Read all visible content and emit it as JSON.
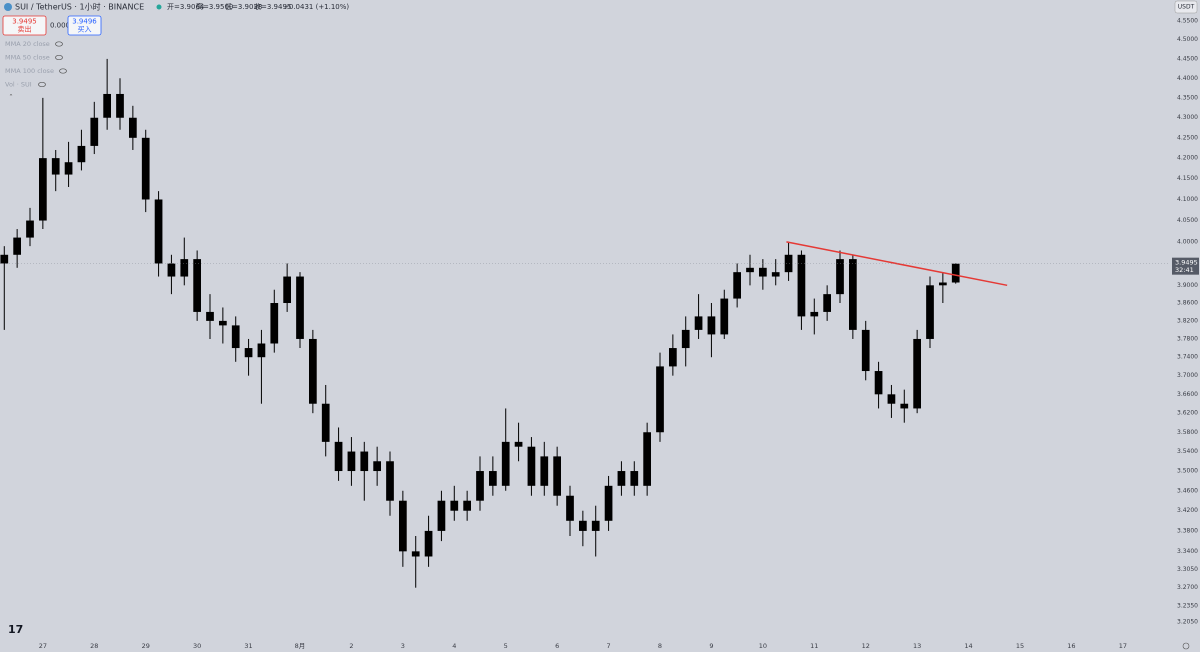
{
  "header": {
    "symbol": "SUI / TetherUS · 1小时 · BINANCE",
    "open": "开=3.9064",
    "high": "高=3.9500",
    "low": "低=3.9038",
    "close": "收=3.9495",
    "change": "+0.0431 (+1.10%)",
    "sell_price": "3.9495",
    "sell_label": "卖出",
    "spread": "0.0001",
    "buy_price": "3.9496",
    "buy_label": "买入",
    "indicators": [
      "MMA 20 close",
      "MMA 50 close",
      "MMA 100 close",
      "Vol · SUI"
    ],
    "currency": "USDT",
    "countdown": "32:41"
  },
  "chart_data": {
    "type": "candlestick",
    "color": "#000000",
    "log_scale": true,
    "grid": false,
    "x": [
      -18,
      -12,
      -6,
      0,
      6,
      12,
      18,
      24,
      30,
      36,
      42,
      48,
      54,
      60,
      66,
      72,
      78,
      84,
      90,
      96,
      102,
      108,
      114,
      120,
      126,
      132,
      138,
      144,
      150,
      156,
      162,
      168,
      174,
      180,
      186,
      192,
      198,
      204,
      210,
      216,
      222,
      228,
      234,
      240,
      246,
      252,
      258,
      264,
      270,
      276,
      282,
      288,
      294,
      300,
      306,
      312,
      318,
      324,
      330,
      336,
      342,
      348,
      354,
      360,
      366,
      372,
      378,
      384,
      390,
      396,
      402,
      408,
      414,
      420,
      426
    ],
    "open": [
      3.95,
      3.97,
      4.01,
      4.05,
      4.2,
      4.16,
      4.19,
      4.23,
      4.3,
      4.36,
      4.3,
      4.25,
      4.1,
      3.95,
      3.92,
      3.96,
      3.84,
      3.82,
      3.81,
      3.76,
      3.74,
      3.77,
      3.86,
      3.92,
      3.78,
      3.64,
      3.56,
      3.5,
      3.54,
      3.5,
      3.52,
      3.44,
      3.34,
      3.33,
      3.38,
      3.44,
      3.42,
      3.44,
      3.5,
      3.47,
      3.56,
      3.55,
      3.47,
      3.53,
      3.45,
      3.4,
      3.38,
      3.4,
      3.47,
      3.5,
      3.47,
      3.58,
      3.72,
      3.76,
      3.8,
      3.83,
      3.79,
      3.87,
      3.93,
      3.94,
      3.92,
      3.93,
      3.97,
      3.83,
      3.84,
      3.88,
      3.96,
      3.8,
      3.71,
      3.66,
      3.64,
      3.63,
      3.78,
      3.9,
      3.9064
    ],
    "high": [
      3.99,
      4.03,
      4.08,
      4.35,
      4.22,
      4.24,
      4.27,
      4.34,
      4.45,
      4.4,
      4.33,
      4.27,
      4.12,
      3.97,
      4.01,
      3.98,
      3.88,
      3.85,
      3.83,
      3.78,
      3.8,
      3.89,
      3.95,
      3.93,
      3.8,
      3.68,
      3.59,
      3.57,
      3.56,
      3.55,
      3.54,
      3.46,
      3.37,
      3.41,
      3.46,
      3.47,
      3.46,
      3.53,
      3.53,
      3.63,
      3.6,
      3.57,
      3.56,
      3.55,
      3.47,
      3.42,
      3.43,
      3.49,
      3.52,
      3.52,
      3.6,
      3.75,
      3.79,
      3.83,
      3.88,
      3.86,
      3.89,
      3.95,
      3.97,
      3.96,
      3.96,
      4.0,
      3.98,
      3.87,
      3.9,
      3.98,
      3.97,
      3.82,
      3.73,
      3.68,
      3.67,
      3.8,
      3.92,
      3.93,
      3.95
    ],
    "low": [
      3.8,
      3.94,
      3.99,
      4.03,
      4.12,
      4.13,
      4.17,
      4.21,
      4.27,
      4.27,
      4.22,
      4.07,
      3.92,
      3.88,
      3.9,
      3.82,
      3.78,
      3.77,
      3.73,
      3.7,
      3.64,
      3.75,
      3.84,
      3.76,
      3.62,
      3.53,
      3.48,
      3.47,
      3.44,
      3.47,
      3.41,
      3.31,
      3.27,
      3.31,
      3.36,
      3.4,
      3.4,
      3.42,
      3.45,
      3.46,
      3.52,
      3.45,
      3.45,
      3.43,
      3.37,
      3.35,
      3.33,
      3.38,
      3.45,
      3.45,
      3.45,
      3.56,
      3.7,
      3.72,
      3.78,
      3.74,
      3.78,
      3.85,
      3.9,
      3.89,
      3.9,
      3.91,
      3.8,
      3.79,
      3.82,
      3.86,
      3.78,
      3.69,
      3.63,
      3.61,
      3.6,
      3.62,
      3.76,
      3.86,
      3.9038
    ],
    "close": [
      3.97,
      4.01,
      4.05,
      4.2,
      4.16,
      4.19,
      4.23,
      4.3,
      4.36,
      4.3,
      4.25,
      4.1,
      3.95,
      3.92,
      3.96,
      3.84,
      3.82,
      3.81,
      3.76,
      3.74,
      3.77,
      3.86,
      3.92,
      3.78,
      3.64,
      3.56,
      3.5,
      3.54,
      3.5,
      3.52,
      3.44,
      3.34,
      3.33,
      3.38,
      3.44,
      3.42,
      3.44,
      3.5,
      3.47,
      3.56,
      3.55,
      3.47,
      3.53,
      3.45,
      3.4,
      3.38,
      3.4,
      3.47,
      3.5,
      3.47,
      3.58,
      3.72,
      3.76,
      3.8,
      3.83,
      3.79,
      3.87,
      3.93,
      3.94,
      3.92,
      3.93,
      3.97,
      3.83,
      3.84,
      3.88,
      3.96,
      3.8,
      3.71,
      3.66,
      3.64,
      3.63,
      3.78,
      3.9,
      3.9064,
      3.9495
    ],
    "xlim": [
      -20,
      526
    ],
    "ylim": [
      3.17,
      4.6
    ],
    "xticks": [
      {
        "value": 0,
        "label": "27"
      },
      {
        "value": 24,
        "label": "28"
      },
      {
        "value": 48,
        "label": "29"
      },
      {
        "value": 72,
        "label": "30"
      },
      {
        "value": 96,
        "label": "31"
      },
      {
        "value": 120,
        "label": "8月"
      },
      {
        "value": 144,
        "label": "2"
      },
      {
        "value": 168,
        "label": "3"
      },
      {
        "value": 192,
        "label": "4"
      },
      {
        "value": 216,
        "label": "5"
      },
      {
        "value": 240,
        "label": "6"
      },
      {
        "value": 264,
        "label": "7"
      },
      {
        "value": 288,
        "label": "8"
      },
      {
        "value": 312,
        "label": "9"
      },
      {
        "value": 336,
        "label": "10"
      },
      {
        "value": 360,
        "label": "11"
      },
      {
        "value": 384,
        "label": "12"
      },
      {
        "value": 408,
        "label": "13"
      },
      {
        "value": 432,
        "label": "14"
      },
      {
        "value": 456,
        "label": "15"
      },
      {
        "value": 480,
        "label": "16"
      },
      {
        "value": 504,
        "label": "17"
      }
    ],
    "yticks": [
      {
        "value": 4.55,
        "label": "4.5500"
      },
      {
        "value": 4.5,
        "label": "4.5000"
      },
      {
        "value": 4.45,
        "label": "4.4500"
      },
      {
        "value": 4.4,
        "label": "4.4000"
      },
      {
        "value": 4.35,
        "label": "4.3500"
      },
      {
        "value": 4.3,
        "label": "4.3000"
      },
      {
        "value": 4.25,
        "label": "4.2500"
      },
      {
        "value": 4.2,
        "label": "4.2000"
      },
      {
        "value": 4.15,
        "label": "4.1500"
      },
      {
        "value": 4.1,
        "label": "4.1000"
      },
      {
        "value": 4.05,
        "label": "4.0500"
      },
      {
        "value": 4.0,
        "label": "4.0000"
      },
      {
        "value": 3.9,
        "label": "3.9000"
      },
      {
        "value": 3.86,
        "label": "3.8600"
      },
      {
        "value": 3.82,
        "label": "3.8200"
      },
      {
        "value": 3.78,
        "label": "3.7800"
      },
      {
        "value": 3.74,
        "label": "3.7400"
      },
      {
        "value": 3.7,
        "label": "3.7000"
      },
      {
        "value": 3.66,
        "label": "3.6600"
      },
      {
        "value": 3.62,
        "label": "3.6200"
      },
      {
        "value": 3.58,
        "label": "3.5800"
      },
      {
        "value": 3.54,
        "label": "3.5400"
      },
      {
        "value": 3.5,
        "label": "3.5000"
      },
      {
        "value": 3.46,
        "label": "3.4600"
      },
      {
        "value": 3.42,
        "label": "3.4200"
      },
      {
        "value": 3.38,
        "label": "3.3800"
      },
      {
        "value": 3.34,
        "label": "3.3400"
      },
      {
        "value": 3.305,
        "label": "3.3050"
      },
      {
        "value": 3.27,
        "label": "3.2700"
      },
      {
        "value": 3.235,
        "label": "3.2350"
      },
      {
        "value": 3.205,
        "label": "3.2050"
      }
    ],
    "trendline": {
      "x": [
        347,
        450
      ],
      "y": [
        4.0,
        3.9
      ],
      "color": "#e53935"
    }
  }
}
